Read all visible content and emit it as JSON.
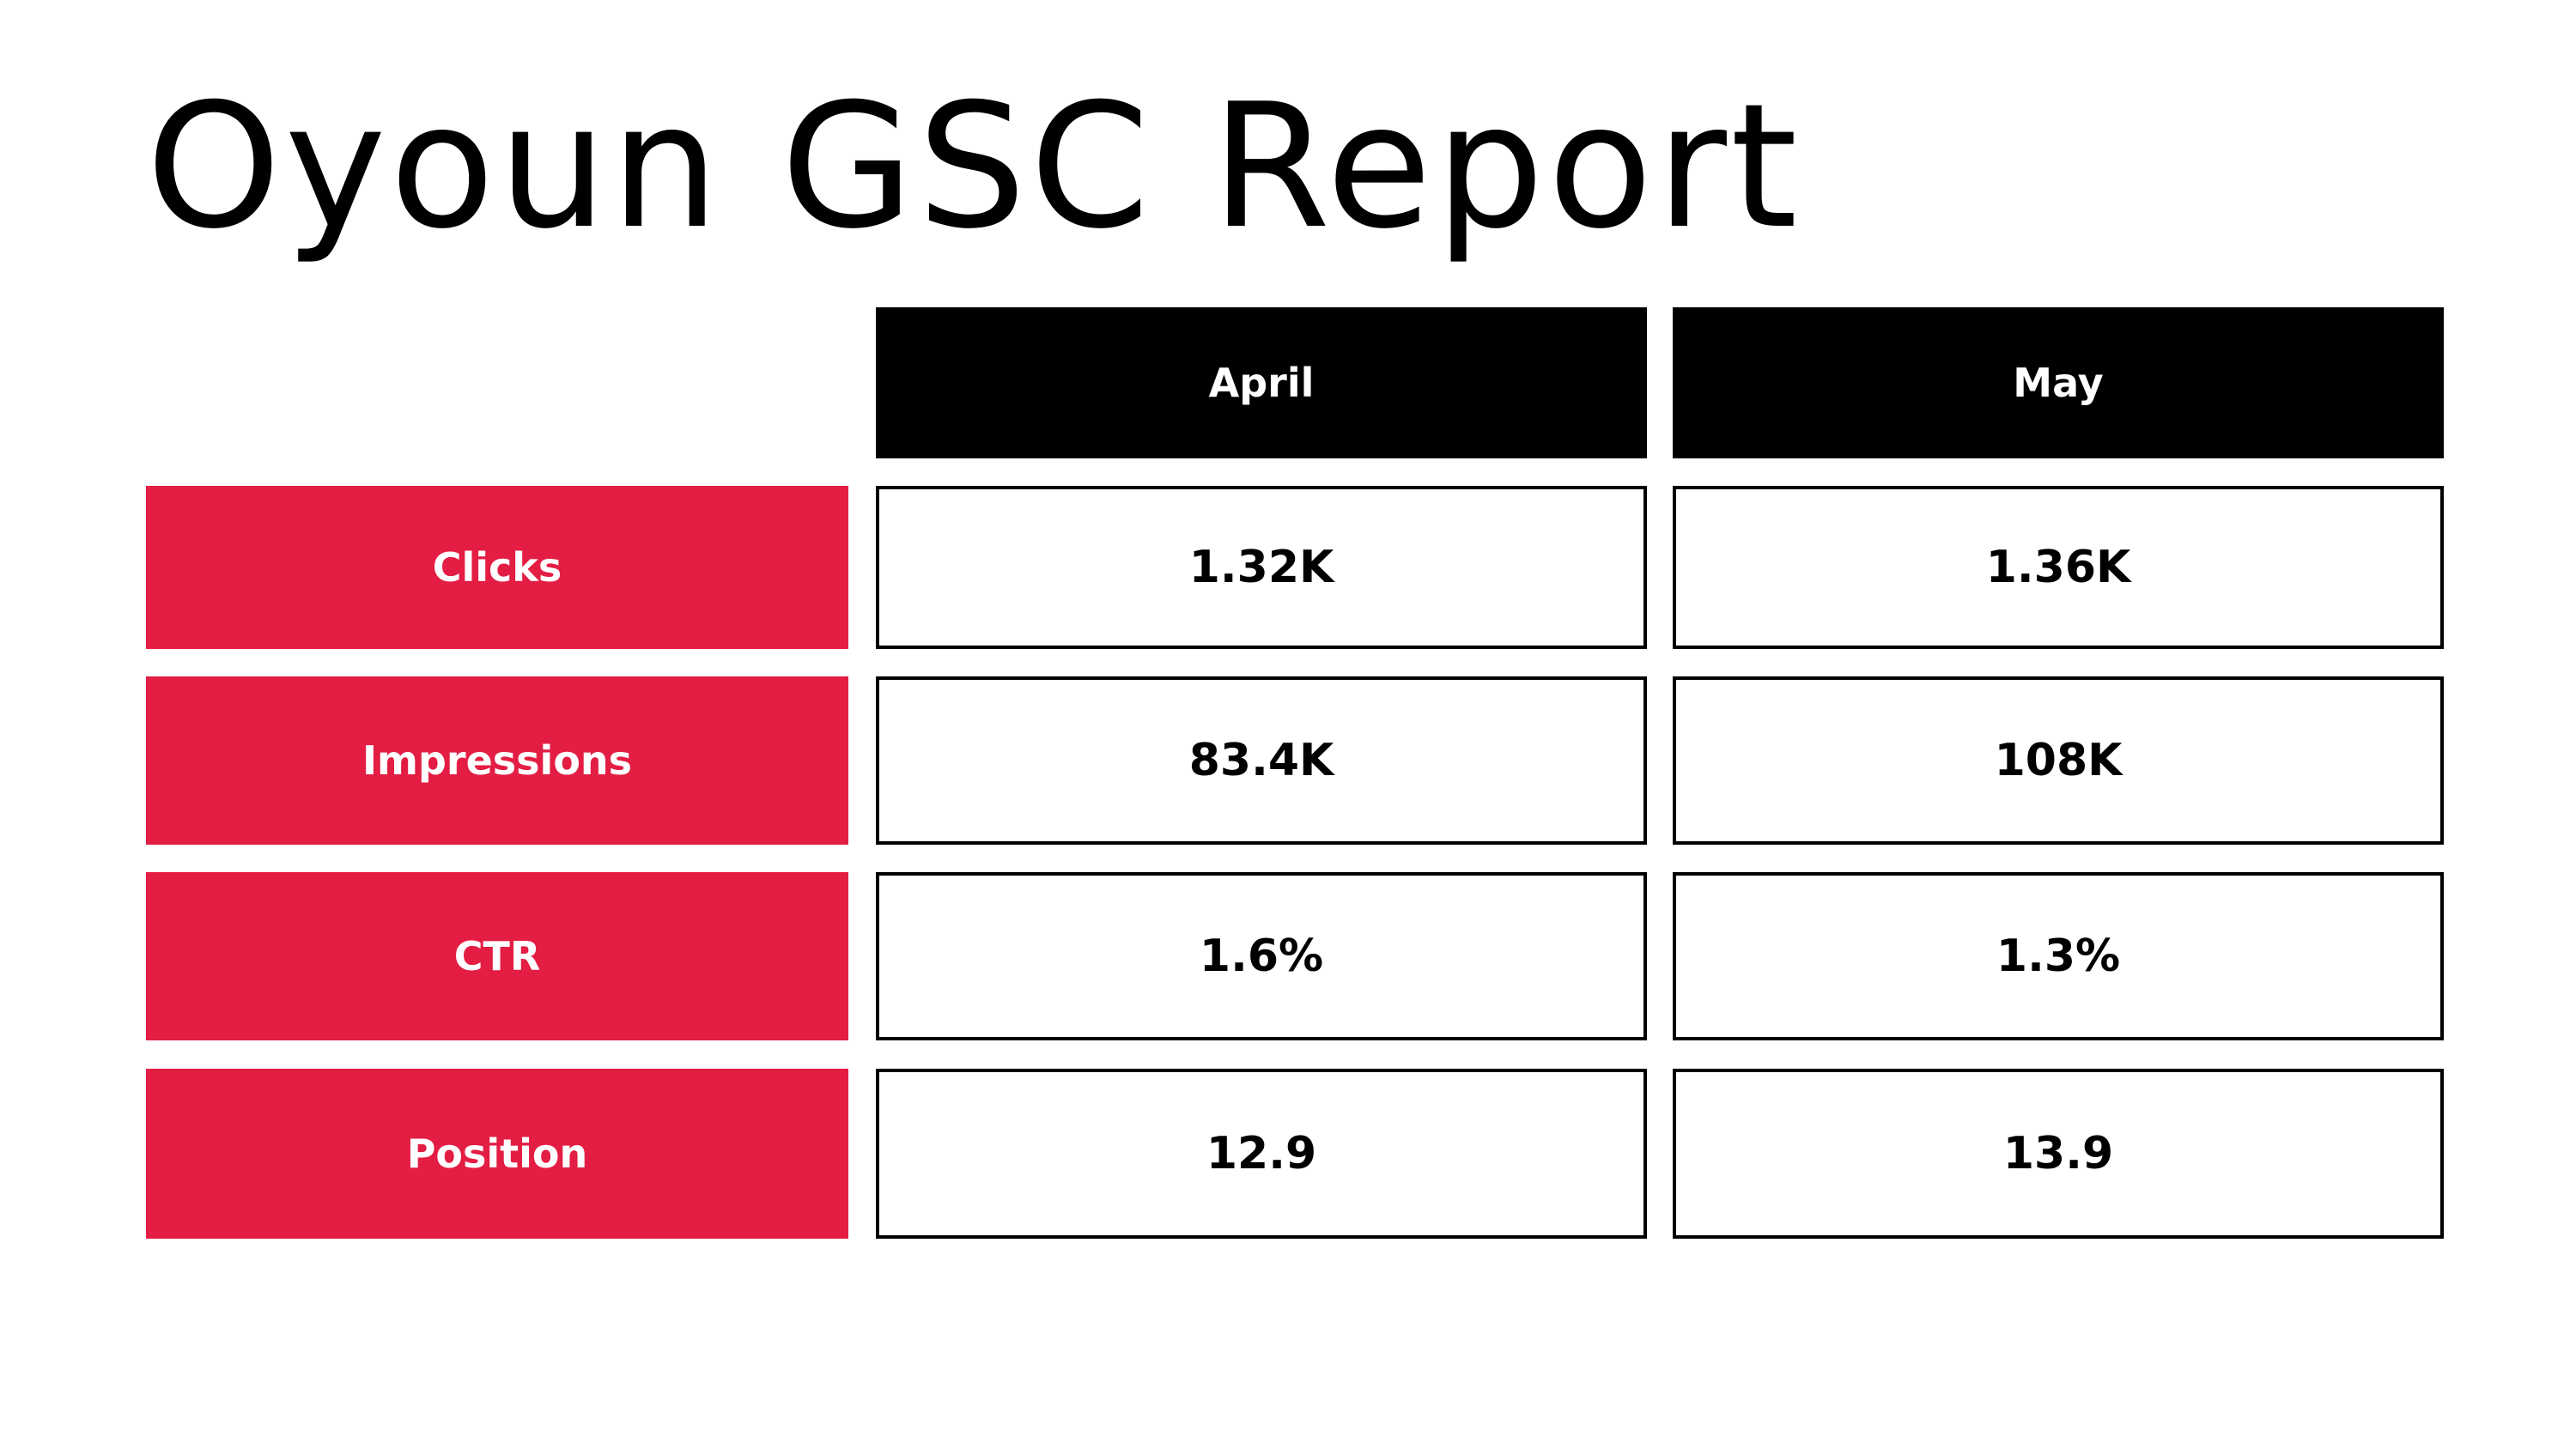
{
  "title": "Oyoun GSC Report",
  "colors": {
    "header_bg": "#000000",
    "label_bg": "#e31d43",
    "cell_border": "#000000",
    "text_light": "#ffffff",
    "text_dark": "#000000"
  },
  "table": {
    "columns": [
      "April",
      "May"
    ],
    "rows": [
      {
        "label": "Clicks",
        "values": [
          "1.32K",
          "1.36K"
        ]
      },
      {
        "label": "Impressions",
        "values": [
          "83.4K",
          "108K"
        ]
      },
      {
        "label": "CTR",
        "values": [
          "1.6%",
          "1.3%"
        ]
      },
      {
        "label": "Position",
        "values": [
          "12.9",
          "13.9"
        ]
      }
    ]
  }
}
